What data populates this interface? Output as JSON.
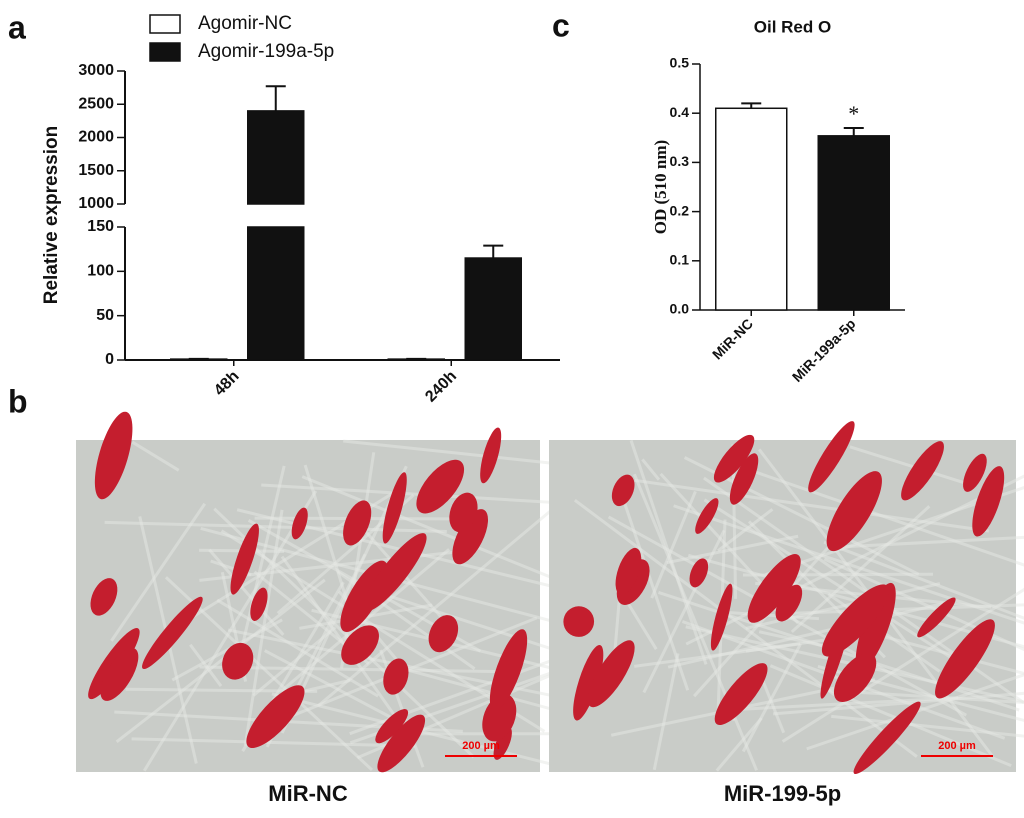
{
  "panel_labels": [
    "a",
    "b",
    "c"
  ],
  "chart_data": [
    {
      "type": "bar",
      "y_label": "Relative expression",
      "categories": [
        "48h",
        "240h"
      ],
      "series": [
        {
          "name": "Agomir-NC",
          "color": "#ffffff",
          "values": [
            1,
            1
          ],
          "errors": [
            0.2,
            0.2
          ]
        },
        {
          "name": "Agomir-199a-5p",
          "color": "#111111",
          "values": [
            2400,
            115
          ],
          "errors": [
            370,
            14
          ]
        }
      ],
      "ylim": [
        0,
        3000
      ],
      "axis_break": [
        150,
        1000
      ],
      "yticks": [
        0,
        50,
        100,
        150,
        1000,
        1500,
        2000,
        2500,
        3000
      ]
    },
    {
      "type": "bar",
      "title": "Oil Red O",
      "y_label": "OD (510 nm)",
      "categories": [
        "MiR-NC",
        "MiR-199a-5p"
      ],
      "series": [
        {
          "colors": [
            "#ffffff",
            "#111111"
          ],
          "values": [
            0.41,
            0.354
          ],
          "errors": [
            0.01,
            0.016
          ]
        }
      ],
      "annotations": [
        {
          "text": "*",
          "x": "MiR-199a-5p"
        }
      ],
      "ylim": [
        0,
        0.5
      ],
      "yticks": [
        {
          "value": 0,
          "label": "0.0"
        },
        0.1,
        0.2,
        0.3,
        0.4,
        0.5
      ]
    }
  ],
  "micrographs": [
    {
      "caption": "MiR-NC",
      "scale_bar": "200 µm"
    },
    {
      "caption": "MiR-199-5p",
      "scale_bar": "200 µm"
    }
  ]
}
